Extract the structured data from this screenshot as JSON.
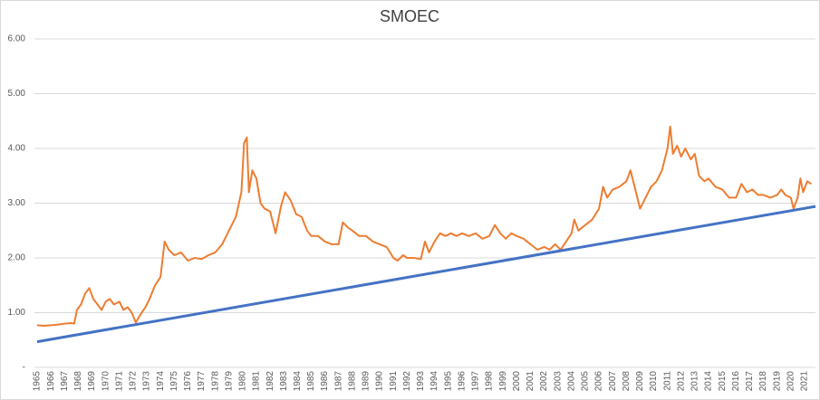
{
  "chart_data": {
    "type": "line",
    "title": "SMOEC",
    "xlim": [
      1964.8,
      2021.8
    ],
    "xticks": [
      1965,
      1966,
      1967,
      1968,
      1969,
      1970,
      1971,
      1972,
      1973,
      1974,
      1975,
      1976,
      1977,
      1978,
      1979,
      1980,
      1981,
      1982,
      1983,
      1984,
      1985,
      1986,
      1987,
      1988,
      1989,
      1990,
      1991,
      1992,
      1993,
      1994,
      1995,
      1996,
      1997,
      1998,
      1999,
      2000,
      2001,
      2002,
      2003,
      2004,
      2005,
      2006,
      2007,
      2008,
      2009,
      2010,
      2011,
      2012,
      2013,
      2014,
      2015,
      2016,
      2017,
      2018,
      2019,
      2020,
      2021
    ],
    "ylim": [
      0,
      6
    ],
    "yticks": [
      {
        "value": 0,
        "label": "-"
      },
      {
        "value": 1,
        "label": "1.00"
      },
      {
        "value": 2,
        "label": "2.00"
      },
      {
        "value": 3,
        "label": "3.00"
      },
      {
        "value": 4,
        "label": "4.00"
      },
      {
        "value": 5,
        "label": "5.00"
      },
      {
        "value": 6,
        "label": "6.00"
      }
    ],
    "grid": true,
    "series": [
      {
        "color": "#ed7d31",
        "x": [
          1965.0,
          1965.5,
          1966,
          1966.5,
          1967,
          1967.5,
          1967.7,
          1967.9,
          1968.2,
          1968.5,
          1968.8,
          1969.1,
          1969.4,
          1969.7,
          1970,
          1970.3,
          1970.6,
          1971,
          1971.3,
          1971.6,
          1971.9,
          1972.2,
          1972.5,
          1972.9,
          1973.2,
          1973.6,
          1974,
          1974.3,
          1974.6,
          1975,
          1975.5,
          1976,
          1976.5,
          1977,
          1977.5,
          1978,
          1978.5,
          1979,
          1979.5,
          1979.9,
          1980.1,
          1980.3,
          1980.45,
          1980.7,
          1981,
          1981.3,
          1981.6,
          1982,
          1982.4,
          1982.8,
          1983.1,
          1983.5,
          1983.9,
          1984.3,
          1984.7,
          1985,
          1985.5,
          1986,
          1986.5,
          1987,
          1987.3,
          1987.7,
          1988,
          1988.5,
          1989,
          1989.5,
          1990,
          1990.5,
          1991,
          1991.3,
          1991.7,
          1992,
          1992.5,
          1993,
          1993.3,
          1993.6,
          1994,
          1994.4,
          1994.8,
          1995.2,
          1995.6,
          1996,
          1996.5,
          1997,
          1997.5,
          1998,
          1998.4,
          1998.8,
          1999.2,
          1999.6,
          2000,
          2000.5,
          2001,
          2001.5,
          2002,
          2002.4,
          2002.8,
          2003.2,
          2003.6,
          2004,
          2004.2,
          2004.5,
          2005,
          2005.5,
          2006,
          2006.3,
          2006.6,
          2007,
          2007.5,
          2008,
          2008.3,
          2008.6,
          2009,
          2009.4,
          2009.8,
          2010.2,
          2010.6,
          2011,
          2011.2,
          2011.4,
          2011.7,
          2012,
          2012.3,
          2012.7,
          2013,
          2013.3,
          2013.7,
          2014,
          2014.5,
          2015,
          2015.5,
          2016,
          2016.4,
          2016.8,
          2017.2,
          2017.6,
          2018,
          2018.5,
          2019,
          2019.3,
          2019.6,
          2020,
          2020.2,
          2020.5,
          2020.7,
          2020.9,
          2021.2,
          2021.5
        ],
        "values": [
          0.77,
          0.76,
          0.77,
          0.78,
          0.8,
          0.81,
          0.8,
          1.05,
          1.15,
          1.35,
          1.45,
          1.25,
          1.15,
          1.05,
          1.2,
          1.25,
          1.15,
          1.2,
          1.05,
          1.1,
          1.0,
          0.82,
          0.95,
          1.1,
          1.25,
          1.5,
          1.65,
          2.3,
          2.15,
          2.05,
          2.1,
          1.95,
          2.0,
          1.98,
          2.05,
          2.1,
          2.25,
          2.5,
          2.75,
          3.2,
          4.1,
          4.2,
          3.2,
          3.6,
          3.45,
          3.0,
          2.9,
          2.85,
          2.45,
          2.95,
          3.2,
          3.05,
          2.8,
          2.75,
          2.5,
          2.4,
          2.4,
          2.3,
          2.25,
          2.25,
          2.65,
          2.55,
          2.5,
          2.4,
          2.4,
          2.3,
          2.25,
          2.2,
          2.0,
          1.95,
          2.05,
          2.0,
          2.0,
          1.98,
          2.3,
          2.1,
          2.3,
          2.45,
          2.4,
          2.45,
          2.4,
          2.45,
          2.4,
          2.45,
          2.35,
          2.4,
          2.6,
          2.45,
          2.35,
          2.45,
          2.4,
          2.35,
          2.25,
          2.15,
          2.2,
          2.15,
          2.25,
          2.15,
          2.3,
          2.45,
          2.7,
          2.5,
          2.6,
          2.7,
          2.9,
          3.3,
          3.1,
          3.25,
          3.3,
          3.4,
          3.6,
          3.3,
          2.9,
          3.1,
          3.3,
          3.4,
          3.6,
          4.0,
          4.4,
          3.9,
          4.05,
          3.85,
          4.0,
          3.8,
          3.9,
          3.5,
          3.4,
          3.45,
          3.3,
          3.25,
          3.1,
          3.1,
          3.35,
          3.2,
          3.25,
          3.15,
          3.15,
          3.1,
          3.15,
          3.25,
          3.15,
          3.1,
          2.9,
          3.1,
          3.45,
          3.2,
          3.4,
          3.35
        ]
      },
      {
        "color": "#4472c4",
        "x": [
          1965,
          2021.8
        ],
        "values": [
          0.47,
          2.94
        ]
      }
    ]
  }
}
